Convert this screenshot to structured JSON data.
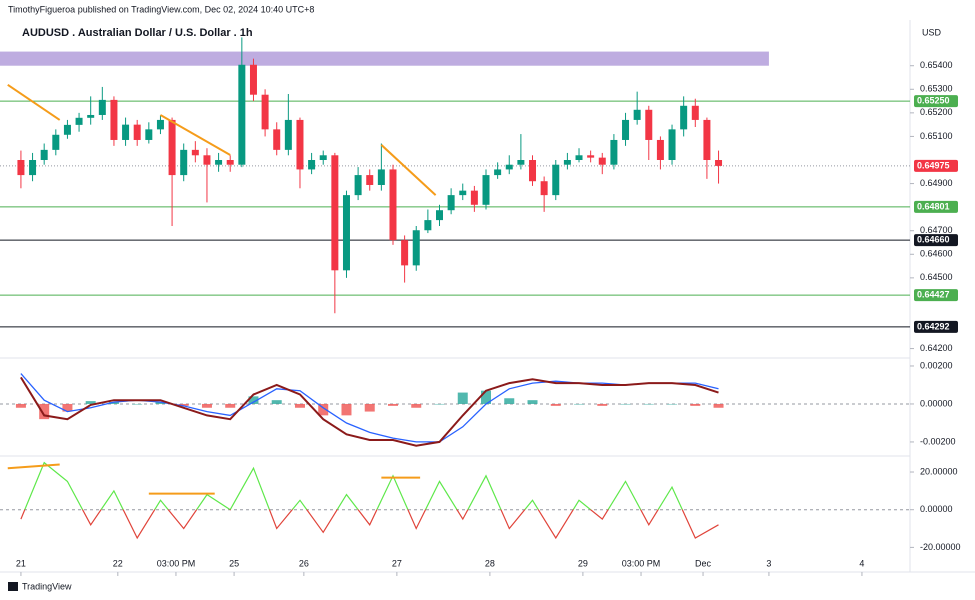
{
  "header": {
    "publisher": "TimothyFigueroa published on TradingView.com, Dec 02, 2024 10:40 UTC+8",
    "currency": "USD",
    "footer": "TradingView"
  },
  "chart_data": [
    {
      "type": "candlestick",
      "title": "AUDUSD . Australian Dollar / U.S. Dollar . 1h",
      "up_color": "#089981",
      "down_color": "#f23645",
      "xlim": [
        -5.4,
        229.4
      ],
      "xticks": [
        {
          "value": 0,
          "label": "21"
        },
        {
          "value": 25,
          "label": "22"
        },
        {
          "value": 40,
          "label": "03:00 PM"
        },
        {
          "value": 55,
          "label": "25"
        },
        {
          "value": 73,
          "label": "26"
        },
        {
          "value": 97,
          "label": "27"
        },
        {
          "value": 121,
          "label": "28"
        },
        {
          "value": 145,
          "label": "29"
        },
        {
          "value": 160,
          "label": "03:00 PM"
        },
        {
          "value": 176,
          "label": "Dec"
        },
        {
          "value": 193,
          "label": "3"
        },
        {
          "value": 217,
          "label": "4"
        }
      ],
      "ylim": [
        0.6416,
        0.6556
      ],
      "yticks": [
        {
          "value": 0.642,
          "label": "0.64200"
        },
        {
          "value": 0.645,
          "label": "0.64500"
        },
        {
          "value": 0.646,
          "label": "0.64600"
        },
        {
          "value": 0.647,
          "label": "0.64700"
        },
        {
          "value": 0.649,
          "label": "0.64900"
        },
        {
          "value": 0.651,
          "label": "0.65100"
        },
        {
          "value": 0.652,
          "label": "0.65200"
        },
        {
          "value": 0.653,
          "label": "0.65300"
        },
        {
          "value": 0.654,
          "label": "0.65400"
        }
      ],
      "x": [
        0,
        3,
        6,
        9,
        12,
        15,
        18,
        21,
        24,
        27,
        30,
        33,
        36,
        39,
        42,
        45,
        48,
        51,
        54,
        57,
        60,
        63,
        66,
        69,
        72,
        75,
        78,
        81,
        84,
        87,
        90,
        93,
        96,
        99,
        102,
        105,
        108,
        111,
        114,
        117,
        120,
        123,
        126,
        129,
        132,
        135,
        138,
        141,
        144,
        147,
        150,
        153,
        156,
        159,
        162,
        165,
        168,
        171,
        174,
        177,
        180
      ],
      "open": [
        0.65,
        0.64936,
        0.65,
        0.65043,
        0.65107,
        0.65149,
        0.65179,
        0.65191,
        0.65255,
        0.65085,
        0.6515,
        0.65085,
        0.6513,
        0.6517,
        0.64936,
        0.65043,
        0.6502,
        0.6498,
        0.65,
        0.6498,
        0.65404,
        0.65277,
        0.6513,
        0.65043,
        0.6517,
        0.6496,
        0.65,
        0.6502,
        0.64532,
        0.64851,
        0.64936,
        0.64894,
        0.6496,
        0.6466,
        0.64553,
        0.64702,
        0.64745,
        0.64787,
        0.64851,
        0.6487,
        0.6481,
        0.64936,
        0.6496,
        0.6498,
        0.65,
        0.6491,
        0.64851,
        0.6498,
        0.65,
        0.6502,
        0.6501,
        0.6498,
        0.65085,
        0.6517,
        0.65213,
        0.65085,
        0.65,
        0.6513,
        0.6523,
        0.6517,
        0.65
      ],
      "high": [
        0.6504,
        0.6503,
        0.6507,
        0.6513,
        0.6517,
        0.652,
        0.6527,
        0.6531,
        0.6527,
        0.6518,
        0.6517,
        0.6516,
        0.6519,
        0.6518,
        0.6507,
        0.6508,
        0.6505,
        0.6503,
        0.6502,
        0.6552,
        0.6543,
        0.653,
        0.6516,
        0.6528,
        0.6518,
        0.6503,
        0.6504,
        0.6503,
        0.6487,
        0.6497,
        0.6496,
        0.6507,
        0.6498,
        0.6468,
        0.6472,
        0.6479,
        0.6481,
        0.6488,
        0.649,
        0.6489,
        0.6496,
        0.6499,
        0.6502,
        0.6511,
        0.6502,
        0.6493,
        0.65,
        0.6503,
        0.6505,
        0.6504,
        0.6503,
        0.6511,
        0.652,
        0.6529,
        0.6523,
        0.651,
        0.6515,
        0.6527,
        0.6526,
        0.6518,
        0.6504
      ],
      "low": [
        0.6488,
        0.6491,
        0.6498,
        0.6502,
        0.6509,
        0.6512,
        0.6515,
        0.6517,
        0.6506,
        0.6506,
        0.6506,
        0.6507,
        0.6511,
        0.6472,
        0.6491,
        0.6499,
        0.6482,
        0.6495,
        0.6495,
        0.6497,
        0.6525,
        0.651,
        0.6502,
        0.6502,
        0.6488,
        0.6494,
        0.6498,
        0.6435,
        0.645,
        0.6483,
        0.6487,
        0.6487,
        0.6464,
        0.6448,
        0.6453,
        0.6469,
        0.6472,
        0.6477,
        0.6483,
        0.6478,
        0.6479,
        0.6492,
        0.6494,
        0.6496,
        0.6489,
        0.6478,
        0.6483,
        0.6496,
        0.6499,
        0.6499,
        0.6494,
        0.6496,
        0.6506,
        0.6515,
        0.65,
        0.6496,
        0.6498,
        0.651,
        0.6514,
        0.6492,
        0.649
      ],
      "close": [
        0.64936,
        0.65,
        0.65043,
        0.65107,
        0.65149,
        0.65179,
        0.65191,
        0.65255,
        0.65085,
        0.6515,
        0.65085,
        0.6513,
        0.6517,
        0.64936,
        0.65043,
        0.6502,
        0.6498,
        0.65,
        0.6498,
        0.65404,
        0.65277,
        0.6513,
        0.65043,
        0.6517,
        0.6496,
        0.65,
        0.6502,
        0.64532,
        0.64851,
        0.64936,
        0.64894,
        0.6496,
        0.6466,
        0.64553,
        0.64702,
        0.64745,
        0.64787,
        0.64851,
        0.6487,
        0.6481,
        0.64936,
        0.6496,
        0.6498,
        0.65,
        0.6491,
        0.64851,
        0.6498,
        0.65,
        0.6502,
        0.6501,
        0.6498,
        0.65085,
        0.6517,
        0.65213,
        0.65085,
        0.65,
        0.6513,
        0.6523,
        0.6517,
        0.65,
        0.64975
      ],
      "zones": [
        {
          "x": [
            -5.4,
            193
          ],
          "range": [
            0.654,
            0.6546
          ],
          "color": "#b39ddb"
        }
      ],
      "levels": [
        {
          "value": 0.6525,
          "label": "0.65250",
          "color": "#4caf50"
        },
        {
          "value": 0.64975,
          "label": "0.64975",
          "color": "#f23645",
          "dashed": true
        },
        {
          "value": 0.64801,
          "label": "0.64801",
          "color": "#4caf50"
        },
        {
          "value": 0.6466,
          "label": "0.64660",
          "color": "#131722"
        },
        {
          "value": 0.64427,
          "label": "0.64427",
          "color": "#4caf50"
        },
        {
          "value": 0.64292,
          "label": "0.64292",
          "color": "#131722"
        }
      ],
      "trendlines": [
        {
          "x": [
            -3.4,
            10
          ],
          "y": [
            0.65319,
            0.6517
          ]
        },
        {
          "x": [
            36,
            54
          ],
          "y": [
            0.65191,
            0.65021
          ]
        },
        {
          "x": [
            93,
            107
          ],
          "y": [
            0.65064,
            0.64851
          ]
        }
      ],
      "trend_color": "#f59c1a"
    },
    {
      "type": "macd",
      "xlim": [
        -5.4,
        229.4
      ],
      "ylim": [
        -0.00274,
        0.00242
      ],
      "yticks": [
        {
          "value": 0.002,
          "label": "0.00200"
        },
        {
          "value": 0,
          "label": "0.00000"
        },
        {
          "value": -0.002,
          "label": "-0.00200"
        }
      ],
      "zero_line": true,
      "x": [
        0,
        6,
        12,
        18,
        24,
        30,
        36,
        42,
        48,
        54,
        60,
        66,
        72,
        78,
        84,
        90,
        96,
        102,
        108,
        114,
        120,
        126,
        132,
        138,
        144,
        150,
        156,
        162,
        168,
        174,
        180
      ],
      "macd": {
        "color": "#8b1a1a",
        "values": [
          0.0014,
          -0.0006,
          -0.0008,
          -5e-05,
          0.0002,
          0.0002,
          0.0002,
          -0.0002,
          -0.0006,
          -0.0008,
          0.0005,
          0.001,
          0.0005,
          -0.0008,
          -0.0016,
          -0.0019,
          -0.0019,
          -0.0022,
          -0.002,
          -0.0006,
          0.0007,
          0.0011,
          0.0013,
          0.0011,
          0.0011,
          0.001,
          0.001,
          0.0011,
          0.0011,
          0.001,
          0.0006
        ]
      },
      "signal": {
        "color": "#2962ff",
        "values": [
          0.0016,
          0.0002,
          -0.0004,
          -0.0002,
          0.0001,
          0.0002,
          0.0001,
          -0.0001,
          -0.0004,
          -0.0006,
          0.0001,
          0.0008,
          0.0007,
          -0.0002,
          -0.001,
          -0.0015,
          -0.0018,
          -0.002,
          -0.002,
          -0.0012,
          0,
          0.0008,
          0.0011,
          0.0012,
          0.0011,
          0.0011,
          0.001,
          0.0011,
          0.0011,
          0.0011,
          0.0008
        ]
      },
      "histogram": {
        "up_color": "#26a69a",
        "down_color": "#ef5350",
        "values": [
          -0.0002,
          -0.0008,
          -0.0004,
          0.00015,
          0.0001,
          0,
          0.0001,
          -0.0001,
          -0.0002,
          -0.0002,
          0.0004,
          0.0002,
          -0.0002,
          -0.0006,
          -0.0006,
          -0.0004,
          -0.0001,
          -0.0002,
          0,
          0.0006,
          0.0007,
          0.0003,
          0.0002,
          -0.0001,
          0,
          -0.0001,
          0,
          0,
          0,
          -0.0001,
          -0.0002
        ]
      }
    },
    {
      "type": "oscillator",
      "xlim": [
        -5.4,
        229.4
      ],
      "ylim": [
        -32,
        28.5
      ],
      "yticks": [
        {
          "value": 20,
          "label": "20.00000"
        },
        {
          "value": 0,
          "label": "0.00000"
        },
        {
          "value": -20,
          "label": "-20.00000"
        }
      ],
      "zero_line": true,
      "up_color": "#5ee84a",
      "down_color": "#e0443a",
      "x": [
        0,
        6,
        12,
        18,
        24,
        30,
        36,
        42,
        48,
        54,
        60,
        66,
        72,
        78,
        84,
        90,
        96,
        102,
        108,
        114,
        120,
        126,
        132,
        138,
        144,
        150,
        156,
        162,
        168,
        174,
        180
      ],
      "values": [
        -5,
        25,
        15,
        -8,
        10,
        -15,
        5,
        -10,
        8,
        0,
        22,
        -10,
        5,
        -12,
        8,
        -8,
        18,
        -10,
        15,
        -5,
        18,
        -10,
        5,
        -15,
        5,
        -5,
        15,
        -8,
        12,
        -15,
        -8
      ],
      "trendlines": [
        {
          "x": [
            -3.4,
            10
          ],
          "y": [
            22,
            24
          ]
        },
        {
          "x": [
            33,
            50
          ],
          "y": [
            8.5,
            8.5
          ]
        },
        {
          "x": [
            93,
            103
          ],
          "y": [
            17,
            17
          ]
        }
      ],
      "trend_color": "#f59c1a"
    }
  ]
}
